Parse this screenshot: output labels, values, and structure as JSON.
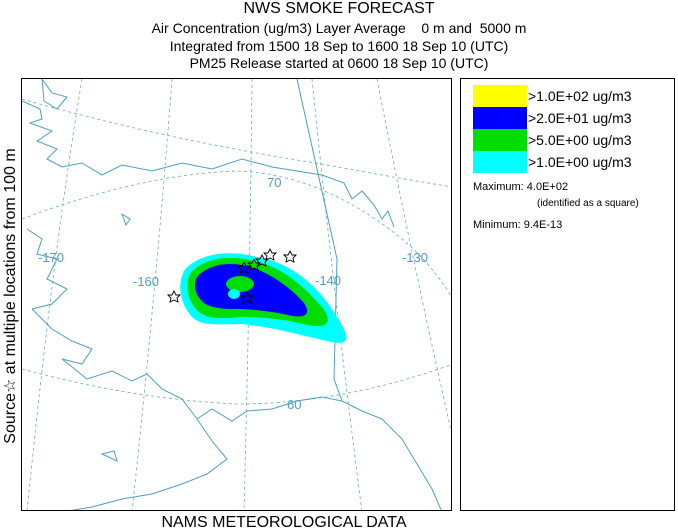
{
  "header": {
    "title": "NWS SMOKE FORECAST",
    "line1": "Air Concentration (ug/m3) Layer Average    0 m and  5000 m",
    "line2": "Integrated from 1500 18 Sep to 1600 18 Sep 10 (UTC)",
    "line3": "PM25 Release started at 0600 18 Sep 10 (UTC)"
  },
  "side_label": "Source☆  at multiple locations  from  100 m",
  "footer": "NAMS METEOROLOGICAL DATA",
  "map": {
    "graticule_labels": {
      "lon": [
        "-170",
        "-160",
        "-140",
        "-130"
      ],
      "lat": [
        "70",
        "60"
      ]
    },
    "colors": {
      "coast": "#4f9fc4",
      "graticule": "#6aa8c8"
    }
  },
  "legend": {
    "entries": [
      {
        "label": ">1.0E+02 ug/m3",
        "color": "#ffff00"
      },
      {
        "label": ">2.0E+01 ug/m3",
        "color": "#0000ff"
      },
      {
        "label": ">5.0E+00 ug/m3",
        "color": "#00dd00"
      },
      {
        "label": ">1.0E+00 ug/m3",
        "color": "#00ffff"
      }
    ],
    "maximum_label": "Maximum:",
    "maximum_value": "4.0E+02",
    "maximum_note": "(identified as a square)",
    "minimum_label": "Minimum:",
    "minimum_value": "9.4E-13"
  }
}
